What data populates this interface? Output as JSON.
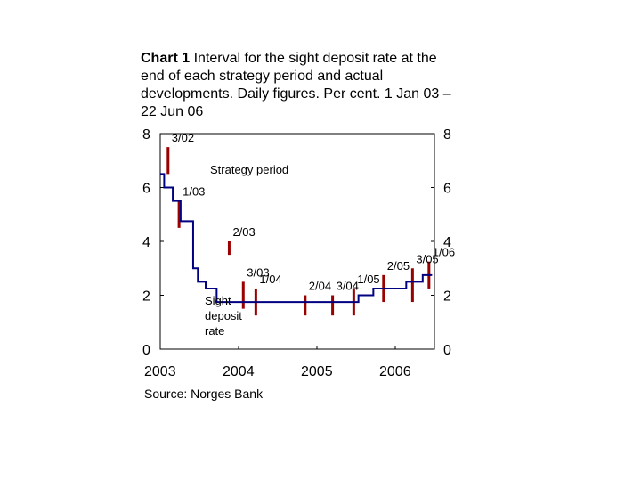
{
  "title": {
    "prefix": "Chart 1",
    "text": "Interval for the sight deposit rate at the end of each strategy period and actual developments. Daily figures. Per cent. 1 Jan 03 – 22 Jun 06"
  },
  "source": "Source: Norges Bank",
  "chart_data": {
    "type": "line",
    "title": "Chart 1 Interval for the sight deposit rate at the end of each strategy period and actual developments. Daily figures. Per cent. 1 Jan 03 – 22 Jun 06",
    "xlabel": "",
    "ylabel": "",
    "xlim": [
      2003.0,
      2006.5
    ],
    "ylim": [
      0,
      8
    ],
    "yticks": [
      0,
      2,
      4,
      6,
      8
    ],
    "xticks": [
      {
        "value": 2003,
        "label": "2003"
      },
      {
        "value": 2004,
        "label": "2004"
      },
      {
        "value": 2005,
        "label": "2005"
      },
      {
        "value": 2006,
        "label": "2006"
      }
    ],
    "series": [
      {
        "name": "Sight deposit rate",
        "color": "#000080",
        "step": true,
        "x": [
          2003.0,
          2003.05,
          2003.16,
          2003.26,
          2003.42,
          2003.48,
          2003.58,
          2003.72,
          2004.0,
          2004.2,
          2005.45,
          2005.53,
          2005.72,
          2005.95,
          2006.14,
          2006.35,
          2006.47
        ],
        "y": [
          6.5,
          6.0,
          5.5,
          4.75,
          3.0,
          2.5,
          2.25,
          1.75,
          1.75,
          1.75,
          1.75,
          2.0,
          2.25,
          2.25,
          2.5,
          2.75,
          2.75
        ]
      }
    ],
    "strategy_intervals": {
      "name": "Strategy period",
      "color": "#990000",
      "items": [
        {
          "label": "3/02",
          "x": 2003.1,
          "low": 6.5,
          "high": 7.5
        },
        {
          "label": "1/03",
          "x": 2003.24,
          "low": 4.5,
          "high": 5.5
        },
        {
          "label": "2/03",
          "x": 2003.88,
          "low": 3.5,
          "high": 4.0
        },
        {
          "label": "3/03",
          "x": 2004.06,
          "low": 1.5,
          "high": 2.5
        },
        {
          "label": "1/04",
          "x": 2004.22,
          "low": 1.25,
          "high": 2.25
        },
        {
          "label": "2/04",
          "x": 2004.85,
          "low": 1.25,
          "high": 2.0
        },
        {
          "label": "3/04",
          "x": 2005.2,
          "low": 1.25,
          "high": 2.0
        },
        {
          "label": "1/05",
          "x": 2005.47,
          "low": 1.25,
          "high": 2.25
        },
        {
          "label": "2/05",
          "x": 2005.85,
          "low": 1.75,
          "high": 2.75
        },
        {
          "label": "3/05",
          "x": 2006.22,
          "low": 1.75,
          "high": 3.0
        },
        {
          "label": "1/06",
          "x": 2006.43,
          "low": 2.25,
          "high": 3.25
        }
      ]
    },
    "annotations": [
      {
        "text": "Strategy period"
      },
      {
        "text": "Sight deposit rate"
      }
    ]
  }
}
